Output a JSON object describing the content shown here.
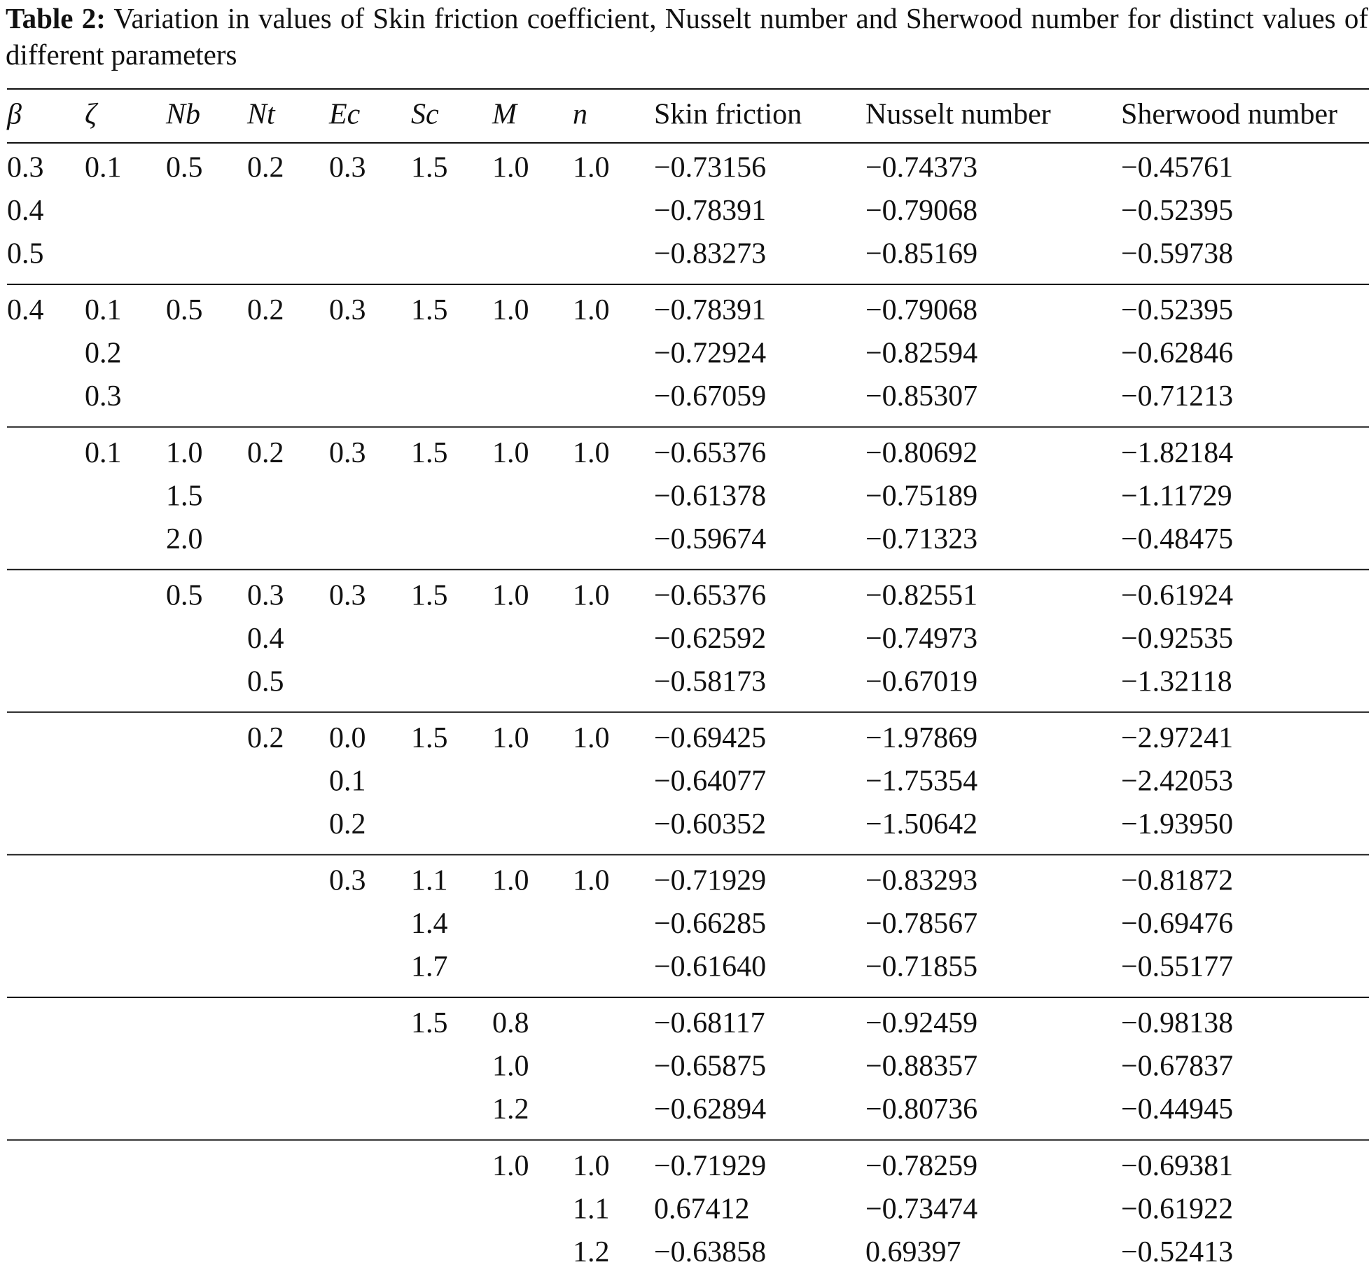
{
  "caption": {
    "label": "Table 2:",
    "text": "Variation in values of Skin friction coefficient, Nusselt number and Sherwood number for distinct values of different parameters"
  },
  "table": {
    "header": [
      "β",
      "ζ",
      "Nb",
      "Nt",
      "Ec",
      "Sc",
      "M",
      "n",
      "Skin friction",
      "Nusselt number",
      "Sherwood number"
    ],
    "groups": [
      {
        "rows": [
          [
            "0.3",
            "0.1",
            "0.5",
            "0.2",
            "0.3",
            "1.5",
            "1.0",
            "1.0",
            "−0.73156",
            "−0.74373",
            "−0.45761"
          ],
          [
            "0.4",
            null,
            null,
            null,
            null,
            null,
            null,
            null,
            "−0.78391",
            "−0.79068",
            "−0.52395"
          ],
          [
            "0.5",
            null,
            null,
            null,
            null,
            null,
            null,
            null,
            "−0.83273",
            "−0.85169",
            "−0.59738"
          ]
        ]
      },
      {
        "rows": [
          [
            "0.4",
            "0.1",
            "0.5",
            "0.2",
            "0.3",
            "1.5",
            "1.0",
            "1.0",
            "−0.78391",
            "−0.79068",
            "−0.52395"
          ],
          [
            null,
            "0.2",
            null,
            null,
            null,
            null,
            null,
            null,
            "−0.72924",
            "−0.82594",
            "−0.62846"
          ],
          [
            null,
            "0.3",
            null,
            null,
            null,
            null,
            null,
            null,
            "−0.67059",
            "−0.85307",
            "−0.71213"
          ]
        ]
      },
      {
        "rows": [
          [
            null,
            "0.1",
            "1.0",
            "0.2",
            "0.3",
            "1.5",
            "1.0",
            "1.0",
            "−0.65376",
            "−0.80692",
            "−1.82184"
          ],
          [
            null,
            null,
            "1.5",
            null,
            null,
            null,
            null,
            null,
            "−0.61378",
            "−0.75189",
            "−1.11729"
          ],
          [
            null,
            null,
            "2.0",
            null,
            null,
            null,
            null,
            null,
            "−0.59674",
            "−0.71323",
            "−0.48475"
          ]
        ]
      },
      {
        "rows": [
          [
            null,
            null,
            "0.5",
            "0.3",
            "0.3",
            "1.5",
            "1.0",
            "1.0",
            "−0.65376",
            "−0.82551",
            "−0.61924"
          ],
          [
            null,
            null,
            null,
            "0.4",
            null,
            null,
            null,
            null,
            "−0.62592",
            "−0.74973",
            "−0.92535"
          ],
          [
            null,
            null,
            null,
            "0.5",
            null,
            null,
            null,
            null,
            "−0.58173",
            "−0.67019",
            "−1.32118"
          ]
        ]
      },
      {
        "rows": [
          [
            null,
            null,
            null,
            "0.2",
            "0.0",
            "1.5",
            "1.0",
            "1.0",
            "−0.69425",
            "−1.97869",
            "−2.97241"
          ],
          [
            null,
            null,
            null,
            null,
            "0.1",
            null,
            null,
            null,
            "−0.64077",
            "−1.75354",
            "−2.42053"
          ],
          [
            null,
            null,
            null,
            null,
            "0.2",
            null,
            null,
            null,
            "−0.60352",
            "−1.50642",
            "−1.93950"
          ]
        ]
      },
      {
        "rows": [
          [
            null,
            null,
            null,
            null,
            "0.3",
            "1.1",
            "1.0",
            "1.0",
            "−0.71929",
            "−0.83293",
            "−0.81872"
          ],
          [
            null,
            null,
            null,
            null,
            null,
            "1.4",
            null,
            null,
            "−0.66285",
            "−0.78567",
            "−0.69476"
          ],
          [
            null,
            null,
            null,
            null,
            null,
            "1.7",
            null,
            null,
            "−0.61640",
            "−0.71855",
            "−0.55177"
          ]
        ]
      },
      {
        "rows": [
          [
            null,
            null,
            null,
            null,
            null,
            "1.5",
            "0.8",
            null,
            "−0.68117",
            "−0.92459",
            "−0.98138"
          ],
          [
            null,
            null,
            null,
            null,
            null,
            null,
            "1.0",
            null,
            "−0.65875",
            "−0.88357",
            "−0.67837"
          ],
          [
            null,
            null,
            null,
            null,
            null,
            null,
            "1.2",
            null,
            "−0.62894",
            "−0.80736",
            "−0.44945"
          ]
        ]
      },
      {
        "rows": [
          [
            null,
            null,
            null,
            null,
            null,
            null,
            "1.0",
            "1.0",
            "−0.71929",
            "−0.78259",
            "−0.69381"
          ],
          [
            null,
            null,
            null,
            null,
            null,
            null,
            null,
            "1.1",
            "0.67412",
            "−0.73474",
            "−0.61922"
          ],
          [
            null,
            null,
            null,
            null,
            null,
            null,
            null,
            "1.2",
            "−0.63858",
            "0.69397",
            "−0.52413"
          ]
        ]
      }
    ]
  }
}
